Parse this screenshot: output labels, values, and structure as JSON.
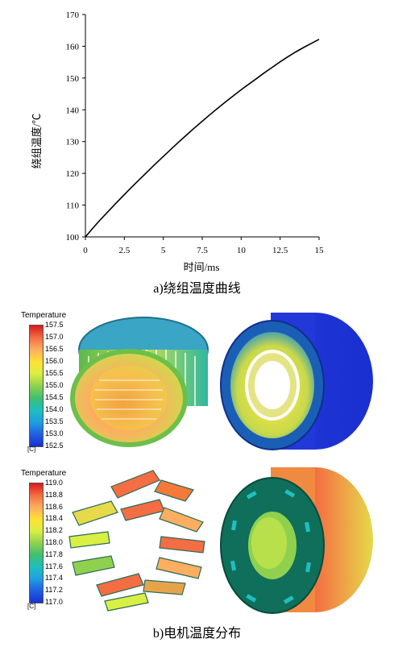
{
  "chart_data": {
    "type": "line",
    "title": "",
    "xlabel": "时间/ms",
    "ylabel": "绕组温度/℃",
    "xlim": [
      0,
      15
    ],
    "ylim": [
      100,
      170
    ],
    "x_ticks": [
      "0",
      "2.5",
      "5",
      "7.5",
      "10",
      "12.5",
      "15"
    ],
    "y_ticks": [
      "100",
      "110",
      "120",
      "130",
      "140",
      "150",
      "160",
      "170"
    ],
    "grid": false,
    "series": [
      {
        "x": [
          0,
          0.5,
          1,
          1.5,
          2,
          2.5,
          3,
          3.5,
          4,
          4.5,
          5,
          5.5,
          6,
          6.5,
          7,
          7.5,
          8,
          8.5,
          9,
          9.5,
          10,
          10.5,
          11,
          11.5,
          12,
          12.5,
          13,
          13.5,
          14,
          14.5,
          15
        ],
        "values": [
          100,
          102.9,
          105.6,
          108.2,
          110.8,
          113.3,
          115.8,
          118.2,
          120.6,
          123,
          125.3,
          127.6,
          129.9,
          132.1,
          134.3,
          136.4,
          138.5,
          140.5,
          142.5,
          144.4,
          146.3,
          148.1,
          149.9,
          151.7,
          153.4,
          155.1,
          156.7,
          158.2,
          159.6,
          160.9,
          162.2
        ]
      }
    ]
  },
  "caption_a": "a)绕组温度曲线",
  "caption_b": "b)电机温度分布",
  "legend_top": {
    "title": "Temperature",
    "ticks": [
      "157.5",
      "157.0",
      "156.5",
      "156.0",
      "155.5",
      "155.0",
      "154.5",
      "154.0",
      "153.5",
      "153.0",
      "152.5"
    ],
    "unit": "[C]"
  },
  "legend_bottom": {
    "title": "Temperature",
    "ticks": [
      "119.0",
      "118.8",
      "118.6",
      "118.4",
      "118.2",
      "118.0",
      "117.8",
      "117.6",
      "117.4",
      "117.2",
      "117.0"
    ],
    "unit": "[C]"
  },
  "colors": {
    "line": "#000000",
    "scale": [
      "#d7191c",
      "#f46d43",
      "#fdae61",
      "#ffe033",
      "#d9ef43",
      "#8fd14f",
      "#3fbf6f",
      "#1fbfbf",
      "#1f9fe0",
      "#2060e0",
      "#1a2fd0"
    ]
  }
}
